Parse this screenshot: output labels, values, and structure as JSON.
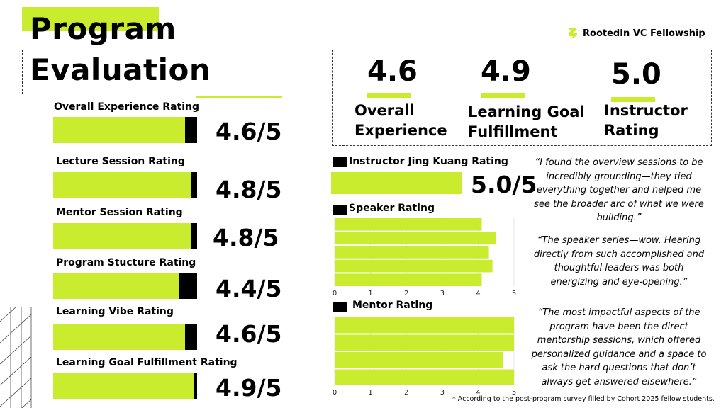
{
  "title": {
    "line1": "Program",
    "line2": "Evaluation"
  },
  "brand": {
    "name": "RootedIn VC Fellowship",
    "accent": "#c9ec2f"
  },
  "ratings": [
    {
      "label": "Overall Experience Rating",
      "value": 4.6,
      "display": "4.6/5"
    },
    {
      "label": "Lecture Session Rating",
      "value": 4.8,
      "display": "4.8/5"
    },
    {
      "label": "Mentor Session Rating",
      "value": 4.8,
      "display": "4.8/5"
    },
    {
      "label": "Program Stucture Rating",
      "value": 4.4,
      "display": "4.4/5"
    },
    {
      "label": "Learning Vibe Rating",
      "value": 4.6,
      "display": "4.6/5"
    },
    {
      "label": "Learning Goal Fulfillment Rating",
      "value": 4.9,
      "display": "4.9/5"
    }
  ],
  "kpis": [
    {
      "value": "4.6",
      "label1": "Overall",
      "label2": "Experience"
    },
    {
      "value": "4.9",
      "label1": "Learning Goal",
      "label2": "Fulfillment"
    },
    {
      "value": "5.0",
      "label1": "Instructor",
      "label2": "Rating"
    }
  ],
  "instructor": {
    "label": "Instructor Jing Kuang Rating",
    "value": 5.0,
    "display": "5.0/5"
  },
  "chart_data": [
    {
      "type": "bar",
      "title": "Speaker Rating",
      "orientation": "horizontal",
      "values": [
        4.1,
        4.5,
        4.3,
        4.4,
        4.1
      ],
      "xlim": [
        0,
        5
      ],
      "ticks": [
        "0",
        "1",
        "2",
        "3",
        "4",
        "5"
      ],
      "grid": true
    },
    {
      "type": "bar",
      "title": "Mentor Rating",
      "orientation": "horizontal",
      "values": [
        5.0,
        5.0,
        4.7,
        5.0
      ],
      "xlim": [
        0,
        5
      ],
      "ticks": [
        "0",
        "1",
        "2",
        "3",
        "4",
        "5"
      ],
      "grid": true
    }
  ],
  "quotes": [
    "“I found the overview sessions to be incredibly grounding—they tied everything together and helped me see the broader arc of what we were building.”",
    "“The speaker series—wow. Hearing directly from such accomplished and thoughtful leaders was both energizing and eye-opening.”",
    "“The most impactful aspects of the program have been the direct mentorship sessions, which offered personalized guidance and a space to ask the hard questions that don’t always get answered elsewhere.”"
  ],
  "footnote": "* According to the post-program survey filled by Cohort 2025 fellow students."
}
